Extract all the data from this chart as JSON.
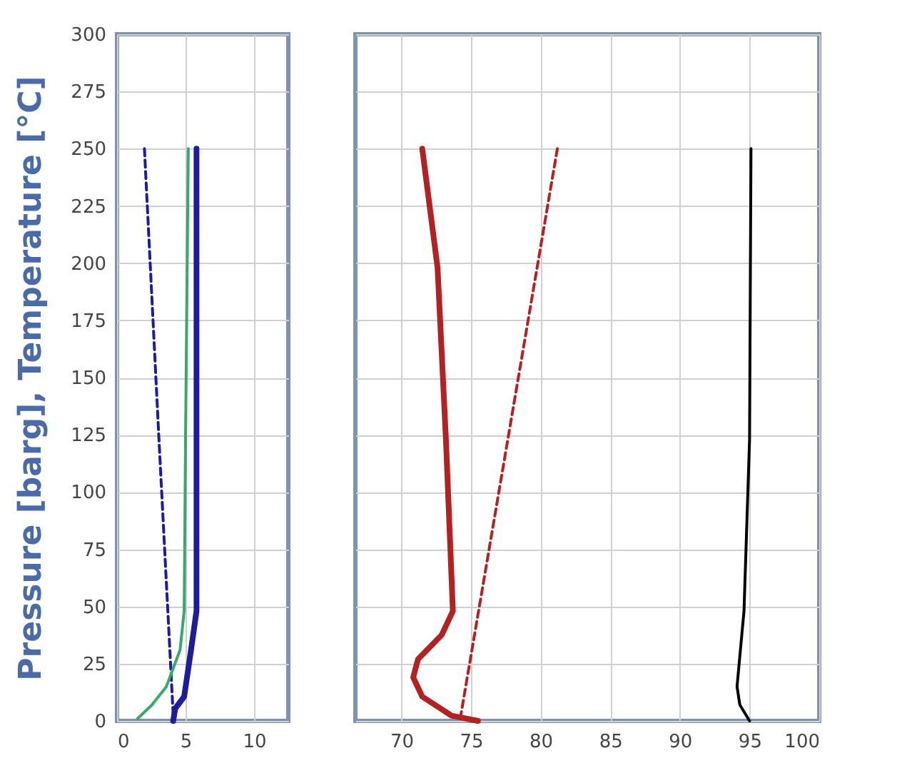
{
  "chart_data": [
    {
      "type": "line",
      "ylabel": "Pressure [barg], Temperature [°C]",
      "xlim": [
        0,
        12.5
      ],
      "xticks": [
        0,
        5,
        10
      ],
      "ylim": [
        0,
        300
      ],
      "yticks": [
        0,
        25,
        50,
        75,
        100,
        125,
        150,
        175,
        200,
        225,
        250,
        275,
        300
      ],
      "grid": true,
      "series": [
        {
          "color": "#1c1c9c",
          "line_style": "solid",
          "x": [
            5.8,
            5.8,
            5.4,
            4.9,
            4.25,
            4.1
          ],
          "values": [
            250,
            48,
            31,
            10.6,
            5.4,
            0
          ]
        },
        {
          "color": "#1c1c9c",
          "line_style": "dashed",
          "x": [
            2.0,
            3.06,
            4.1
          ],
          "values": [
            250,
            123,
            2.5
          ]
        },
        {
          "color": "#3aa76d",
          "line_style": "solid",
          "x": [
            5.2,
            5.0,
            4.9,
            4.6,
            3.6,
            2.55,
            1.5
          ],
          "values": [
            250,
            123,
            48,
            31,
            15,
            7,
            1
          ]
        }
      ]
    },
    {
      "type": "line",
      "xlim": [
        66.7,
        100
      ],
      "xticks": [
        70,
        75,
        80,
        85,
        90,
        95,
        100
      ],
      "ylim": [
        0,
        300
      ],
      "yticks": [
        0,
        25,
        50,
        75,
        100,
        125,
        150,
        175,
        200,
        225,
        250,
        275,
        300
      ],
      "grid": true,
      "tick_labels": "x",
      "series": [
        {
          "color": "#b22222",
          "line_style": "solid",
          "x": [
            71.5,
            72.6,
            73.2,
            73.7,
            72.9,
            71.2,
            70.85,
            71.5,
            73.6,
            75.5
          ],
          "values": [
            250,
            198,
            123,
            48,
            37.6,
            27,
            19,
            10.6,
            2.3,
            0
          ]
        },
        {
          "color": "#b22222",
          "line_style": "dashed",
          "x": [
            81.2,
            74.2
          ],
          "values": [
            250,
            0
          ]
        },
        {
          "color": "#000000",
          "line_style": "solid",
          "x": [
            95.1,
            95.0,
            94.6,
            94.1,
            94.3,
            95.0
          ],
          "values": [
            250,
            123,
            48,
            15,
            7,
            0
          ]
        }
      ]
    }
  ]
}
